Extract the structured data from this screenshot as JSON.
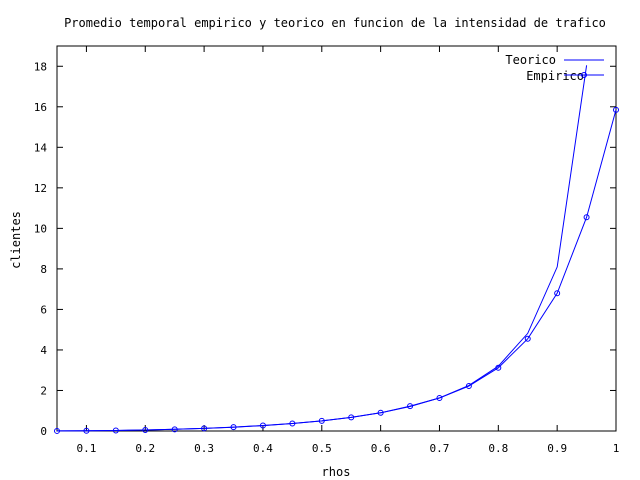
{
  "chart_data": {
    "type": "line",
    "title": "Promedio temporal empirico y teorico en funcion de la intensidad de trafico",
    "xlabel": "rhos",
    "ylabel": "clientes",
    "xlim": [
      0.05,
      1.0
    ],
    "ylim": [
      0,
      19
    ],
    "xticks": [
      0.1,
      0.2,
      0.3,
      0.4,
      0.5,
      0.6,
      0.7,
      0.8,
      0.9,
      1
    ],
    "xtick_labels": [
      "0.1",
      "0.2",
      "0.3",
      "0.4",
      "0.5",
      "0.6",
      "0.7",
      "0.8",
      "0.9",
      "1"
    ],
    "yticks": [
      0,
      2,
      4,
      6,
      8,
      10,
      12,
      14,
      16,
      18
    ],
    "ytick_labels": [
      "0",
      "2",
      "4",
      "6",
      "8",
      "10",
      "12",
      "14",
      "16",
      "18"
    ],
    "grid": false,
    "legend_position": "top-right",
    "series": [
      {
        "name": "Teorico",
        "color": "#0000ff",
        "marker": "none",
        "x": [
          0.05,
          0.1,
          0.15,
          0.2,
          0.25,
          0.3,
          0.35,
          0.4,
          0.45,
          0.5,
          0.55,
          0.6,
          0.65,
          0.7,
          0.75,
          0.8,
          0.85,
          0.9,
          0.95
        ],
        "y": [
          0.003,
          0.011,
          0.026,
          0.05,
          0.083,
          0.129,
          0.188,
          0.267,
          0.368,
          0.5,
          0.672,
          0.9,
          1.207,
          1.633,
          2.25,
          3.2,
          4.817,
          8.1,
          18.05
        ]
      },
      {
        "name": "Empirico",
        "color": "#0000ff",
        "marker": "circle",
        "x": [
          0.05,
          0.1,
          0.15,
          0.2,
          0.25,
          0.3,
          0.35,
          0.4,
          0.45,
          0.5,
          0.55,
          0.6,
          0.65,
          0.7,
          0.75,
          0.8,
          0.85,
          0.9,
          0.95,
          1.0
        ],
        "y": [
          0.003,
          0.011,
          0.026,
          0.05,
          0.083,
          0.13,
          0.19,
          0.27,
          0.37,
          0.5,
          0.67,
          0.9,
          1.23,
          1.63,
          2.22,
          3.12,
          4.55,
          6.8,
          10.55,
          15.85
        ]
      }
    ]
  }
}
